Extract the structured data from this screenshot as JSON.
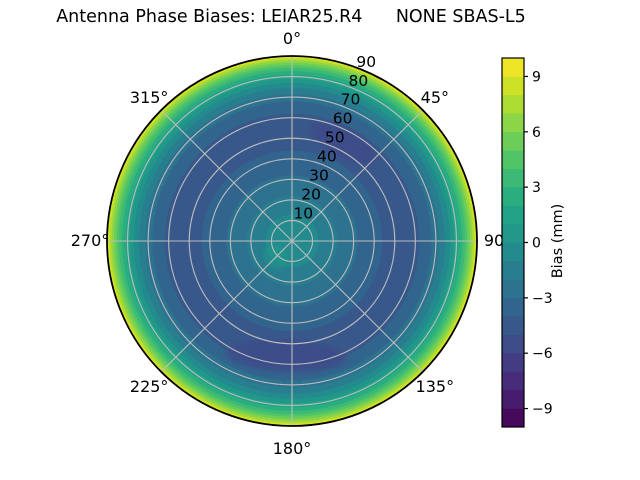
{
  "title": "Antenna Phase Biases: LEIAR25.R4      NONE SBAS-L5",
  "chart_data": {
    "type": "polar_contour",
    "title": "Antenna Phase Biases: LEIAR25.R4      NONE SBAS-L5",
    "antenna": "LEIAR25.R4",
    "radome": "NONE",
    "signal": "SBAS-L5",
    "colormap": "viridis",
    "theta_angles_deg": [
      0,
      45,
      90,
      135,
      180,
      225,
      270,
      315
    ],
    "theta_labels": [
      "0°",
      "45°",
      "90",
      "135°",
      "180°",
      "225°",
      "270°",
      "315°"
    ],
    "r_tick_values": [
      10,
      20,
      30,
      40,
      50,
      60,
      70,
      80,
      90
    ],
    "r_label_azimuth_deg": 22.5,
    "zenith_max": 90,
    "levels": {
      "min": -10,
      "max": 10,
      "step": 1,
      "n_bands": 20
    },
    "colorbar": {
      "label": "Bias (mm)",
      "tick_values": [
        9,
        6,
        3,
        0,
        -3,
        -6,
        -9
      ]
    },
    "bias_profile": [
      [
        0,
        -0.4
      ],
      [
        8,
        -0.6
      ],
      [
        13,
        -1.0
      ],
      [
        18,
        -1.55
      ],
      [
        22,
        -2.0
      ],
      [
        27,
        -2.55
      ],
      [
        32,
        -3.0
      ],
      [
        38,
        -3.7
      ],
      [
        44,
        -4.0
      ],
      [
        48,
        -4.3
      ],
      [
        53,
        -4.45
      ],
      [
        58,
        -4.3
      ],
      [
        62,
        -4.0
      ],
      [
        66,
        -3.35
      ],
      [
        68,
        -3.0
      ],
      [
        70,
        -2.4
      ],
      [
        71.5,
        -2.0
      ],
      [
        73,
        -1.5
      ],
      [
        74.5,
        -1.0
      ],
      [
        76,
        -0.45
      ],
      [
        77,
        0.0
      ],
      [
        78,
        0.5
      ],
      [
        79,
        1.0
      ],
      [
        80,
        1.5
      ],
      [
        81,
        2.0
      ],
      [
        82,
        2.55
      ],
      [
        82.8,
        3.0
      ],
      [
        84.3,
        4.0
      ],
      [
        85.6,
        5.0
      ],
      [
        86.8,
        6.0
      ],
      [
        87.9,
        7.0
      ],
      [
        88.8,
        8.0
      ],
      [
        89.5,
        9.0
      ],
      [
        90,
        10.0
      ]
    ],
    "anomalies": [
      {
        "name": "northeast-low-bias-patch",
        "azimuth_deg": 28,
        "zenith_deg": 54,
        "bias": -5.5,
        "azimuth_halfwidth_deg": 19,
        "zenith_halfwidth_deg": 7,
        "opacity": 0.8
      },
      {
        "name": "south-low-bias-patch",
        "azimuth_deg": 183,
        "zenith_deg": 56,
        "bias": -5.5,
        "azimuth_halfwidth_deg": 30,
        "zenith_halfwidth_deg": 8,
        "opacity": 0.75
      },
      {
        "name": "center-high-bias-patch",
        "azimuth_deg": 227,
        "zenith_deg": 11,
        "bias": 0.5,
        "azimuth_halfwidth_deg": 34,
        "zenith_halfwidth_deg": 5,
        "opacity": 0.6
      }
    ],
    "viridis_stops": [
      [
        0.0,
        "#440154"
      ],
      [
        0.1,
        "#482475"
      ],
      [
        0.2,
        "#414487"
      ],
      [
        0.3,
        "#355f8d"
      ],
      [
        0.4,
        "#2a788e"
      ],
      [
        0.5,
        "#21918c"
      ],
      [
        0.6,
        "#22a884"
      ],
      [
        0.7,
        "#44bf70"
      ],
      [
        0.8,
        "#7ad151"
      ],
      [
        0.9,
        "#bddf26"
      ],
      [
        1.0,
        "#fde725"
      ]
    ]
  },
  "style_colors": {
    "grid": "#bdbdbd",
    "outline": "#000000",
    "background": "#ffffff"
  },
  "layout_note_values": {
    "minus_glyph": "−"
  }
}
